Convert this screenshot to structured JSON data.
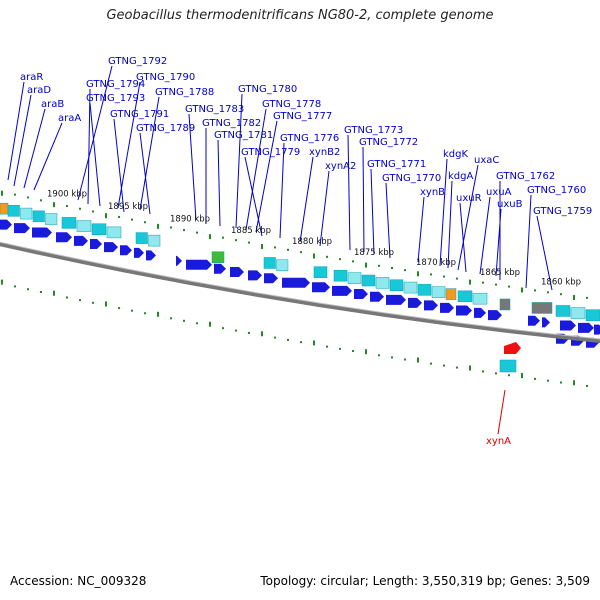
{
  "title": "Geobacillus thermodenitrificans NG80-2, complete genome",
  "footer": {
    "accession": "Accession: NC_009328",
    "summary": "Topology: circular; Length: 3,550,319 bp; Genes: 3,509"
  },
  "colors": {
    "gene_label": "#0000cc",
    "highlight_label": "#dd0000",
    "arrow": "#1a1add",
    "feature_box": "#18c8d8",
    "feature_box_alt": "#8fe8ee",
    "orange": "#f39a1e",
    "green_feature": "#3dbb3d",
    "gray_feature": "#777777",
    "red_feature": "#ee1111",
    "backbone": "#777777",
    "tick": "#228822"
  },
  "scale_labels": [
    {
      "text": "1900 kbp",
      "kbp": 1900
    },
    {
      "text": "1895 kbp",
      "kbp": 1895
    },
    {
      "text": "1890 kbp",
      "kbp": 1890
    },
    {
      "text": "1885 kbp",
      "kbp": 1885
    },
    {
      "text": "1880 kbp",
      "kbp": 1880
    },
    {
      "text": "1875 kbp",
      "kbp": 1875
    },
    {
      "text": "1870 kbp",
      "kbp": 1870
    },
    {
      "text": "1865 kbp",
      "kbp": 1865
    },
    {
      "text": "1860 kbp",
      "kbp": 1860
    }
  ],
  "gene_labels": [
    "araR",
    "araD",
    "araB",
    "araA",
    "GTNG_1792",
    "GTNG_1794",
    "GTNG_1790",
    "GTNG_1793",
    "GTNG_1788",
    "GTNG_1791",
    "GTNG_1789",
    "GTNG_1783",
    "GTNG_1782",
    "GTNG_1781",
    "GTNG_1780",
    "GTNG_1778",
    "GTNG_1777",
    "GTNG_1779",
    "GTNG_1776",
    "xynB2",
    "xynA2",
    "GTNG_1773",
    "GTNG_1772",
    "GTNG_1771",
    "GTNG_1770",
    "xynB",
    "kdgK",
    "kdgA",
    "uxaC",
    "uxuR",
    "uxuA",
    "uxuB",
    "GTNG_1762",
    "GTNG_1760",
    "GTNG_1759"
  ],
  "highlight_label": "xynA"
}
